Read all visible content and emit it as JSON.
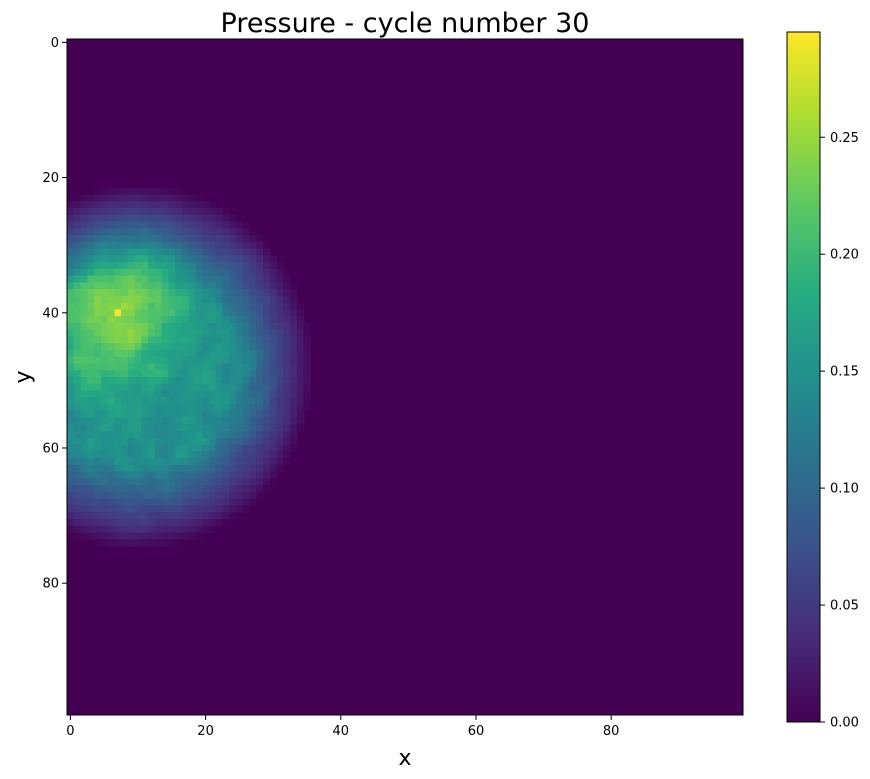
{
  "chart_data": {
    "type": "heatmap",
    "title": "Pressure - cycle number 30",
    "xlabel": "x",
    "ylabel": "y",
    "grid_size": [
      100,
      100
    ],
    "xlim": [
      -0.5,
      99.5
    ],
    "ylim": [
      99.5,
      -0.5
    ],
    "x_ticks": [
      "0",
      "20",
      "40",
      "60",
      "80"
    ],
    "y_ticks": [
      "0",
      "20",
      "40",
      "60",
      "80"
    ],
    "colormap": "viridis",
    "colorbar": {
      "range": [
        0.0,
        0.295
      ],
      "ticks": [
        "0.00",
        "0.05",
        "0.10",
        "0.15",
        "0.20",
        "0.25"
      ]
    },
    "blob": {
      "center": [
        10,
        48
      ],
      "half_width_x": 26,
      "half_height_y": 27,
      "peak_value": 0.29,
      "peak_location": [
        7,
        40
      ],
      "background_value": 0.0
    }
  }
}
